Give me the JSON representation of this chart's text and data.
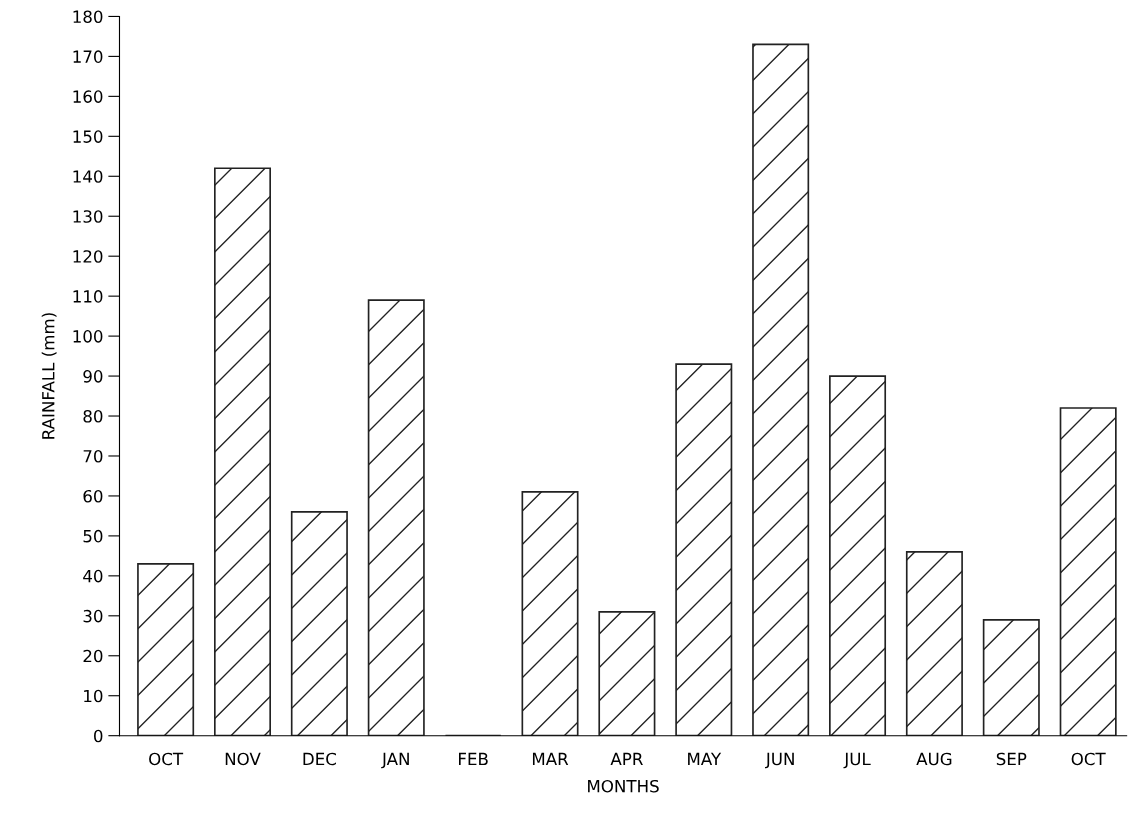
{
  "chart_data": {
    "type": "bar",
    "xlabel": "MONTHS",
    "ylabel": "RAINFALL (mm)",
    "categories": [
      "OCT",
      "NOV",
      "DEC",
      "JAN",
      "FEB",
      "MAR",
      "APR",
      "MAY",
      "JUN",
      "JUL",
      "AUG",
      "SEP",
      "OCT"
    ],
    "values": [
      43,
      142,
      56,
      109,
      0,
      61,
      31,
      93,
      173,
      90,
      46,
      29,
      82
    ],
    "color": "#222222",
    "ylim": [
      0,
      180
    ],
    "yticks": [
      0,
      10,
      20,
      30,
      40,
      50,
      60,
      70,
      80,
      90,
      100,
      110,
      120,
      130,
      140,
      150,
      160,
      170,
      180
    ],
    "grid": false
  }
}
